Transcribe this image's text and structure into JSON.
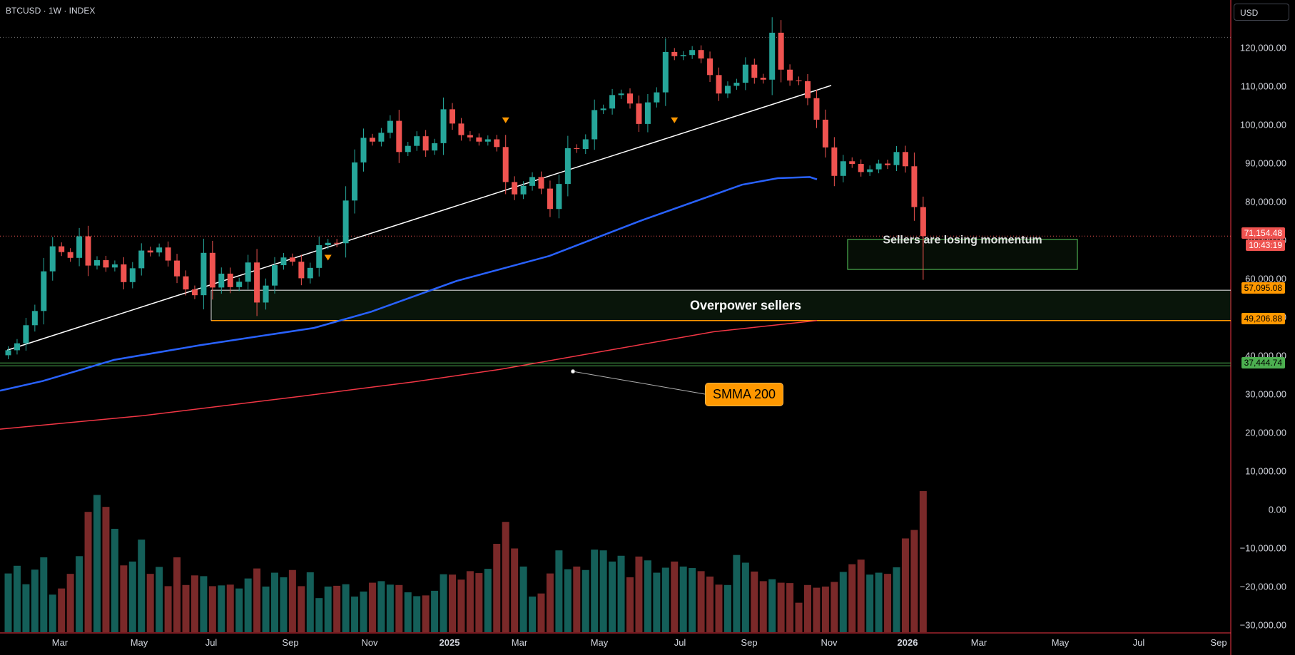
{
  "header": {
    "symbol_label": "BTCUSD · 1W · INDEX"
  },
  "currency_button": {
    "label": "USD"
  },
  "price_tags": {
    "current_price": "71,154.48",
    "countdown": "10:43:19",
    "zone_top": "57,095.08",
    "zone_bottom": "49,206.88",
    "support": "37,444.74"
  },
  "annotations": {
    "momentum": "Sellers are losing momentum",
    "zone": "Overpower sellers",
    "smma": "SMMA 200"
  },
  "colors": {
    "up": "#26a69a",
    "down": "#ef5350",
    "vol_up": "#145f59",
    "vol_down": "#7a2929",
    "sma_blue": "#2962ff",
    "smma_red": "#f23645",
    "zone_border": "#ff9800",
    "momentum_box": "#4caf50"
  },
  "chart_data": {
    "type": "candlestick",
    "symbol": "BTCUSD",
    "timeframe": "1W",
    "y_axis_ticks": [
      "120,000.00",
      "110,000.00",
      "100,000.00",
      "90,000.00",
      "80,000.00",
      "70,000.00",
      "60,000.00",
      "50,000.00",
      "40,000.00",
      "30,000.00",
      "20,000.00",
      "10,000.00",
      "0.00",
      "−10,000.00",
      "−20,000.00",
      "−30,000.00"
    ],
    "x_axis_ticks": [
      "Mar",
      "May",
      "Jul",
      "Sep",
      "Nov",
      "2025",
      "Mar",
      "May",
      "Jul",
      "Sep",
      "Nov",
      "2026",
      "Mar",
      "May",
      "Jul",
      "Sep"
    ],
    "ylim": [
      -33000,
      127000
    ],
    "closes": [
      41500,
      43300,
      48000,
      51700,
      62000,
      68500,
      67000,
      65500,
      71100,
      63500,
      64900,
      63000,
      63800,
      59200,
      62800,
      67400,
      66900,
      68200,
      64800,
      60700,
      57300,
      55800,
      66800,
      57800,
      61400,
      57900,
      59300,
      64300,
      53900,
      58300,
      63600,
      65600,
      64500,
      60200,
      62900,
      68800,
      69400,
      69300,
      80400,
      90300,
      96700,
      95700,
      98000,
      101100,
      93000,
      94600,
      97100,
      93400,
      95300,
      104100,
      100400,
      97400,
      96800,
      95700,
      96300,
      94300,
      85200,
      82000,
      84200,
      86500,
      83500,
      78200,
      84700,
      94000,
      93800,
      96300,
      103900,
      104300,
      107800,
      108200,
      105600,
      100300,
      105900,
      108500,
      119000,
      117900,
      118200,
      119500,
      117300,
      113000,
      108200,
      110200,
      111000,
      115700,
      112300,
      111800,
      124000,
      114400,
      111600,
      111400,
      107000,
      101400,
      94200,
      86800,
      90600,
      89900,
      87800,
      88500,
      90000,
      89600,
      93000,
      89300,
      78700,
      71150
    ],
    "vol_lanes": [
      -16500,
      -14500,
      -19300,
      -15500,
      -12300,
      -22000,
      -20400,
      -16600,
      -12000,
      -500,
      3900,
      800,
      -4900,
      -14400,
      -13400,
      -7700,
      -16600,
      -14800,
      -19800,
      -12300,
      -19500,
      -17000,
      -17200,
      -19800,
      -19600,
      -19400,
      -20400,
      -17800,
      -15200,
      -19900,
      -16300,
      -17500,
      -15600,
      -19800,
      -16200,
      -22900,
      -19900,
      -19700,
      -19300,
      -22500,
      -21200,
      -18900,
      -18500,
      -19400,
      -19500,
      -21400,
      -22400,
      -22200,
      -21000,
      -16700,
      -16800,
      -18100,
      -15900,
      -16400,
      -15300,
      -8800,
      -3100,
      -10000,
      -14700,
      -22500,
      -21700,
      -16500,
      -10500,
      -15400,
      -14700,
      -15600,
      -10300,
      -10500,
      -13400,
      -11900,
      -17500,
      -12100,
      -13100,
      -16300,
      -15000,
      -13400,
      -14700,
      -15100,
      -15900,
      -17300,
      -19400,
      -19500,
      -11700,
      -13700,
      -16000,
      -18500,
      -18000,
      -18900,
      -19000,
      -24100,
      -19500,
      -20200,
      -19900,
      -18700,
      -16100,
      -14100,
      -12900,
      -16800,
      -16300,
      -16600,
      -14900,
      -7400,
      -5200,
      4900
    ],
    "sma_blue": [
      [
        0,
        31000
      ],
      [
        60,
        33500
      ],
      [
        160,
        39000
      ],
      [
        280,
        42800
      ],
      [
        440,
        47300
      ],
      [
        520,
        51500
      ],
      [
        640,
        59500
      ],
      [
        770,
        66000
      ],
      [
        900,
        75300
      ],
      [
        1040,
        84500
      ],
      [
        1090,
        86200
      ],
      [
        1135,
        86500
      ],
      [
        1145,
        85900
      ]
    ],
    "smma_200": [
      [
        0,
        21000
      ],
      [
        200,
        24500
      ],
      [
        420,
        29500
      ],
      [
        580,
        33300
      ],
      [
        700,
        36500
      ],
      [
        860,
        41700
      ],
      [
        1000,
        46300
      ],
      [
        1145,
        49200
      ]
    ],
    "trendline": [
      [
        10,
        41500
      ],
      [
        1165,
        110300
      ]
    ],
    "zone_overpower": [
      49206.88,
      57095.08
    ],
    "momentum_box": [
      62500,
      70300
    ],
    "resistance_level": 122800,
    "current_price_level": 71154.48,
    "support_level": 37444.74
  }
}
